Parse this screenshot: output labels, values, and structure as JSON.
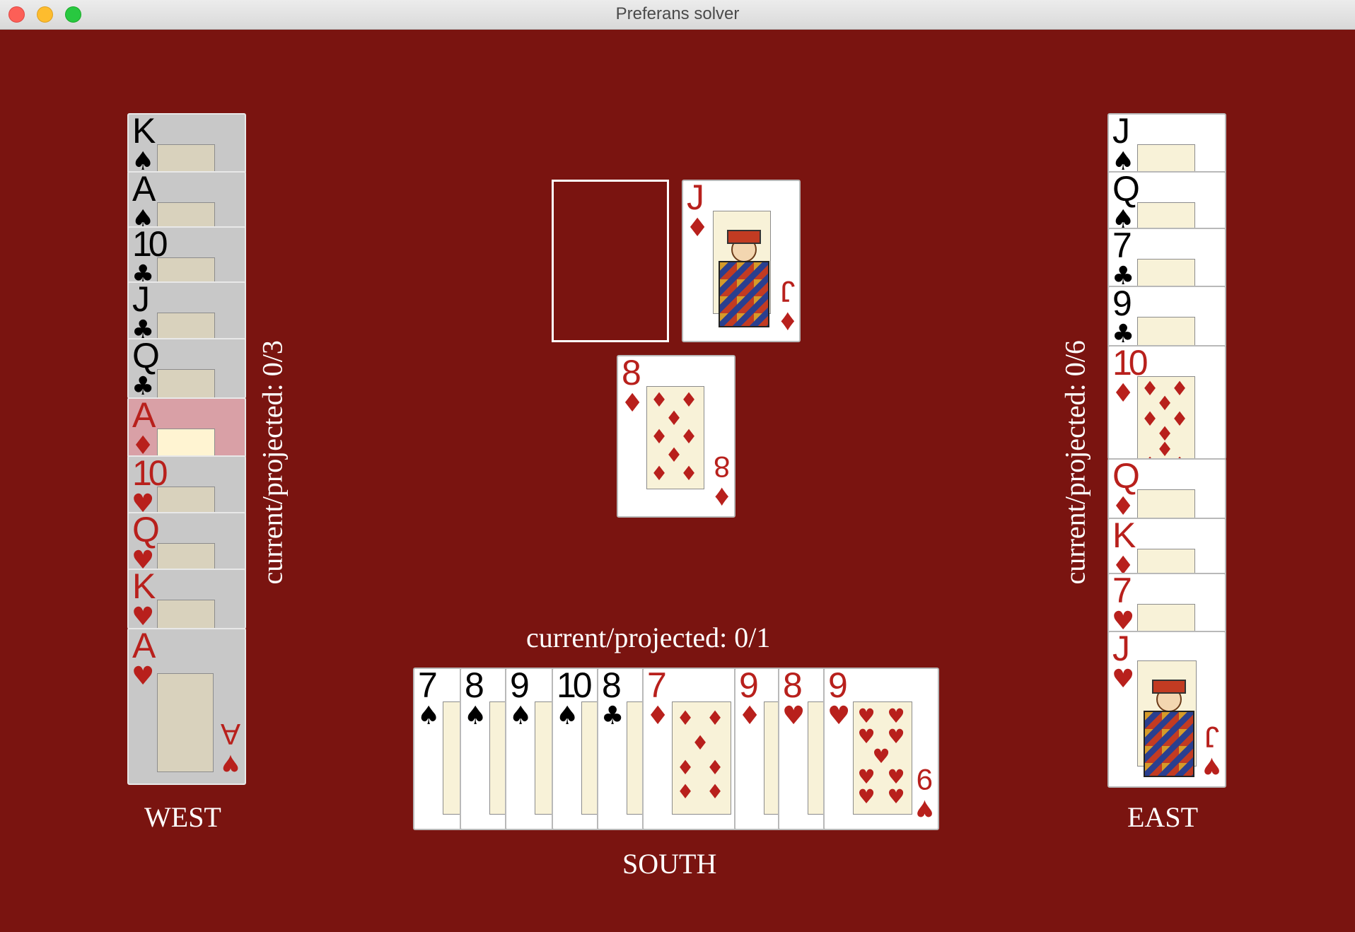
{
  "window": {
    "title": "Preferans solver"
  },
  "colors": {
    "table": "#7a1410",
    "red_suit": "#b8201c",
    "black_suit": "#000000"
  },
  "players": {
    "west": {
      "name": "WEST",
      "score": "current/projected: 0/3",
      "cards": [
        {
          "rank": "K",
          "suit": "♠",
          "color": "black",
          "state": "disabled"
        },
        {
          "rank": "A",
          "suit": "♠",
          "color": "black",
          "state": "disabled"
        },
        {
          "rank": "10",
          "suit": "♣",
          "color": "black",
          "state": "disabled"
        },
        {
          "rank": "J",
          "suit": "♣",
          "color": "black",
          "state": "disabled"
        },
        {
          "rank": "Q",
          "suit": "♣",
          "color": "black",
          "state": "disabled"
        },
        {
          "rank": "A",
          "suit": "♦",
          "color": "red",
          "state": "highlighted"
        },
        {
          "rank": "10",
          "suit": "♥",
          "color": "red",
          "state": "disabled"
        },
        {
          "rank": "Q",
          "suit": "♥",
          "color": "red",
          "state": "disabled"
        },
        {
          "rank": "K",
          "suit": "♥",
          "color": "red",
          "state": "disabled"
        },
        {
          "rank": "A",
          "suit": "♥",
          "color": "red",
          "state": "disabled"
        }
      ]
    },
    "east": {
      "name": "EAST",
      "score": "current/projected: 0/6",
      "cards": [
        {
          "rank": "J",
          "suit": "♠",
          "color": "black"
        },
        {
          "rank": "Q",
          "suit": "♠",
          "color": "black"
        },
        {
          "rank": "7",
          "suit": "♣",
          "color": "black"
        },
        {
          "rank": "9",
          "suit": "♣",
          "color": "black"
        },
        {
          "rank": "10",
          "suit": "♦",
          "color": "red"
        },
        {
          "rank": "Q",
          "suit": "♦",
          "color": "red"
        },
        {
          "rank": "K",
          "suit": "♦",
          "color": "red"
        },
        {
          "rank": "7",
          "suit": "♥",
          "color": "red"
        },
        {
          "rank": "J",
          "suit": "♥",
          "color": "red"
        }
      ]
    },
    "south": {
      "name": "SOUTH",
      "score": "current/projected: 0/1",
      "cards": [
        {
          "rank": "7",
          "suit": "♠",
          "color": "black"
        },
        {
          "rank": "8",
          "suit": "♠",
          "color": "black"
        },
        {
          "rank": "9",
          "suit": "♠",
          "color": "black"
        },
        {
          "rank": "10",
          "suit": "♠",
          "color": "black"
        },
        {
          "rank": "8",
          "suit": "♣",
          "color": "black"
        },
        {
          "rank": "7",
          "suit": "♦",
          "color": "red"
        },
        {
          "rank": "9",
          "suit": "♦",
          "color": "red"
        },
        {
          "rank": "8",
          "suit": "♥",
          "color": "red"
        },
        {
          "rank": "9",
          "suit": "♥",
          "color": "red"
        }
      ]
    }
  },
  "trick": [
    {
      "rank": "J",
      "suit": "♦",
      "color": "red"
    },
    {
      "rank": "8",
      "suit": "♦",
      "color": "red"
    }
  ]
}
